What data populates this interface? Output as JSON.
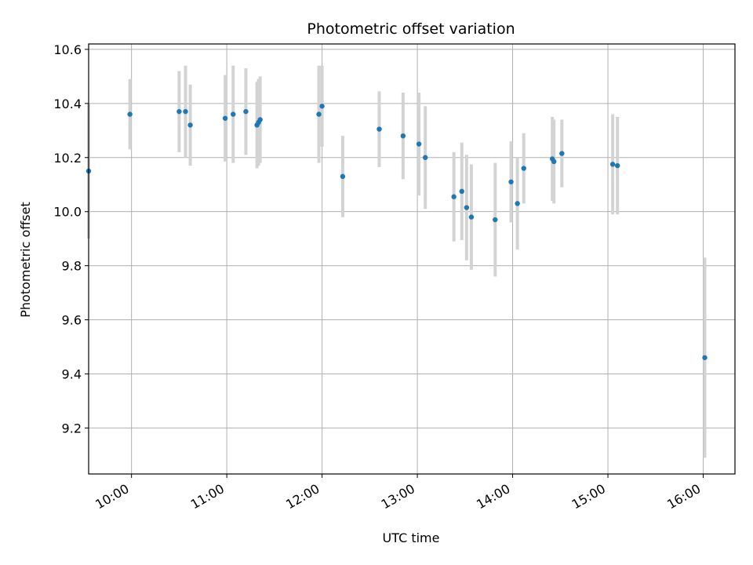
{
  "chart_data": {
    "type": "scatter",
    "title": "Photometric offset variation",
    "xlabel": "UTC time",
    "ylabel": "Photometric offset",
    "grid": true,
    "x_ticks": [
      "10:00",
      "11:00",
      "12:00",
      "13:00",
      "14:00",
      "15:00",
      "16:00"
    ],
    "y_ticks": [
      "9.2",
      "9.4",
      "9.6",
      "9.8",
      "10.0",
      "10.2",
      "10.4",
      "10.6"
    ],
    "xlim": [
      "09:33",
      "16:20"
    ],
    "ylim": [
      9.03,
      10.62
    ],
    "marker_color": "#1f77b4",
    "errorbar_color": "#d3d3d3",
    "points": [
      {
        "x": "09:33",
        "y": 10.15,
        "err": 0.25
      },
      {
        "x": "09:59",
        "y": 10.36,
        "err": 0.13
      },
      {
        "x": "10:30",
        "y": 10.37,
        "err": 0.15
      },
      {
        "x": "10:34",
        "y": 10.37,
        "err": 0.17
      },
      {
        "x": "10:37",
        "y": 10.32,
        "err": 0.15
      },
      {
        "x": "10:59",
        "y": 10.345,
        "err": 0.16
      },
      {
        "x": "11:04",
        "y": 10.36,
        "err": 0.18
      },
      {
        "x": "11:12",
        "y": 10.37,
        "err": 0.16
      },
      {
        "x": "11:19",
        "y": 10.32,
        "err": 0.16
      },
      {
        "x": "11:20",
        "y": 10.33,
        "err": 0.16
      },
      {
        "x": "11:21",
        "y": 10.34,
        "err": 0.16
      },
      {
        "x": "11:58",
        "y": 10.36,
        "err": 0.18
      },
      {
        "x": "12:00",
        "y": 10.39,
        "err": 0.15
      },
      {
        "x": "12:13",
        "y": 10.13,
        "err": 0.15
      },
      {
        "x": "12:36",
        "y": 10.305,
        "err": 0.14
      },
      {
        "x": "12:51",
        "y": 10.28,
        "err": 0.16
      },
      {
        "x": "13:01",
        "y": 10.25,
        "err": 0.19
      },
      {
        "x": "13:05",
        "y": 10.2,
        "err": 0.19
      },
      {
        "x": "13:23",
        "y": 10.055,
        "err": 0.165
      },
      {
        "x": "13:28",
        "y": 10.075,
        "err": 0.18
      },
      {
        "x": "13:31",
        "y": 10.015,
        "err": 0.195
      },
      {
        "x": "13:34",
        "y": 9.98,
        "err": 0.195
      },
      {
        "x": "13:49",
        "y": 9.97,
        "err": 0.21
      },
      {
        "x": "13:59",
        "y": 10.11,
        "err": 0.15
      },
      {
        "x": "14:03",
        "y": 10.03,
        "err": 0.17
      },
      {
        "x": "14:07",
        "y": 10.16,
        "err": 0.13
      },
      {
        "x": "14:25",
        "y": 10.195,
        "err": 0.155
      },
      {
        "x": "14:26",
        "y": 10.185,
        "err": 0.155
      },
      {
        "x": "14:31",
        "y": 10.215,
        "err": 0.125
      },
      {
        "x": "15:03",
        "y": 10.175,
        "err": 0.185
      },
      {
        "x": "15:06",
        "y": 10.17,
        "err": 0.18
      },
      {
        "x": "16:01",
        "y": 9.46,
        "err": 0.37
      }
    ]
  }
}
